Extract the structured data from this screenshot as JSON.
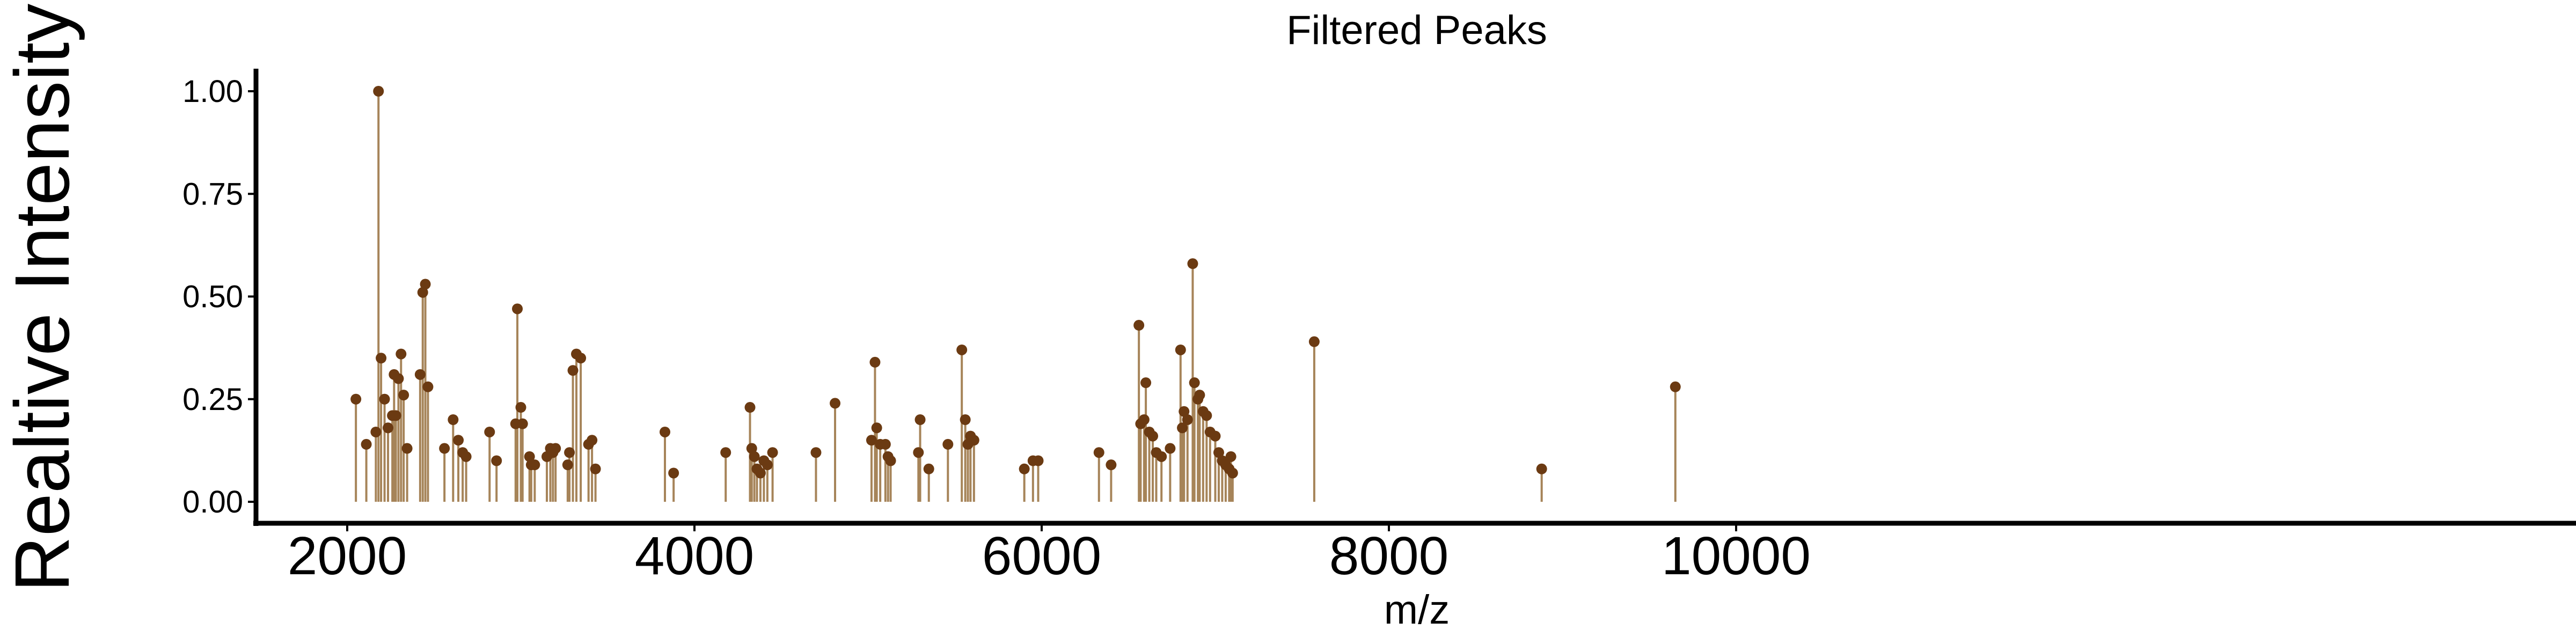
{
  "chart_data": {
    "type": "lollipop",
    "title": "Filtered Peaks",
    "xlabel": "m/z",
    "ylabel": "Realtive Intensity",
    "xlim": [
      1600,
      10200
    ],
    "ylim": [
      0,
      1.03
    ],
    "xticks": [
      2000,
      4000,
      6000,
      8000,
      10000
    ],
    "xtick_labels": [
      "2000",
      "4000",
      "6000",
      "8000",
      "10000"
    ],
    "yticks": [
      0,
      0.25,
      0.5,
      0.75,
      1.0
    ],
    "ytick_labels": [
      "0.00",
      "0.25",
      "0.50",
      "0.75",
      "1.00"
    ],
    "grid": false,
    "colors": {
      "point": "#6b3a12",
      "stem": "#a68459",
      "axis": "#000000"
    },
    "x": [
      2050,
      2110,
      2165,
      2180,
      2195,
      2215,
      2235,
      2260,
      2270,
      2280,
      2295,
      2310,
      2325,
      2345,
      2420,
      2435,
      2450,
      2465,
      2560,
      2610,
      2640,
      2665,
      2685,
      2820,
      2860,
      2970,
      2980,
      3000,
      3010,
      3050,
      3060,
      3080,
      3150,
      3170,
      3185,
      3200,
      3270,
      3280,
      3300,
      3320,
      3345,
      3390,
      3410,
      3430,
      3830,
      3880,
      4180,
      4320,
      4330,
      4345,
      4360,
      4380,
      4400,
      4420,
      4450,
      4700,
      4810,
      5020,
      5040,
      5050,
      5070,
      5100,
      5115,
      5130,
      5290,
      5300,
      5350,
      5460,
      5540,
      5560,
      5575,
      5590,
      5610,
      5900,
      5950,
      5980,
      6330,
      6400,
      6560,
      6570,
      6590,
      6600,
      6620,
      6640,
      6660,
      6690,
      6740,
      6800,
      6810,
      6820,
      6840,
      6870,
      6880,
      6900,
      6910,
      6930,
      6950,
      6970,
      7000,
      7020,
      7040,
      7060,
      7080,
      7090,
      7100,
      7570,
      8880,
      9650
    ],
    "values": [
      0.25,
      0.14,
      0.17,
      1.0,
      0.35,
      0.25,
      0.18,
      0.21,
      0.31,
      0.21,
      0.3,
      0.36,
      0.26,
      0.13,
      0.31,
      0.51,
      0.53,
      0.28,
      0.13,
      0.2,
      0.15,
      0.12,
      0.11,
      0.17,
      0.1,
      0.19,
      0.47,
      0.23,
      0.19,
      0.11,
      0.09,
      0.09,
      0.11,
      0.13,
      0.12,
      0.13,
      0.09,
      0.12,
      0.32,
      0.36,
      0.35,
      0.14,
      0.15,
      0.08,
      0.17,
      0.07,
      0.12,
      0.23,
      0.13,
      0.11,
      0.08,
      0.07,
      0.1,
      0.09,
      0.12,
      0.12,
      0.24,
      0.15,
      0.34,
      0.18,
      0.14,
      0.14,
      0.11,
      0.1,
      0.12,
      0.2,
      0.08,
      0.14,
      0.37,
      0.2,
      0.14,
      0.16,
      0.15,
      0.08,
      0.1,
      0.1,
      0.12,
      0.09,
      0.43,
      0.19,
      0.2,
      0.29,
      0.17,
      0.16,
      0.12,
      0.11,
      0.13,
      0.37,
      0.18,
      0.22,
      0.2,
      0.58,
      0.29,
      0.25,
      0.26,
      0.22,
      0.21,
      0.17,
      0.16,
      0.12,
      0.1,
      0.09,
      0.08,
      0.11,
      0.07,
      0.39,
      0.08,
      0.28
    ]
  }
}
